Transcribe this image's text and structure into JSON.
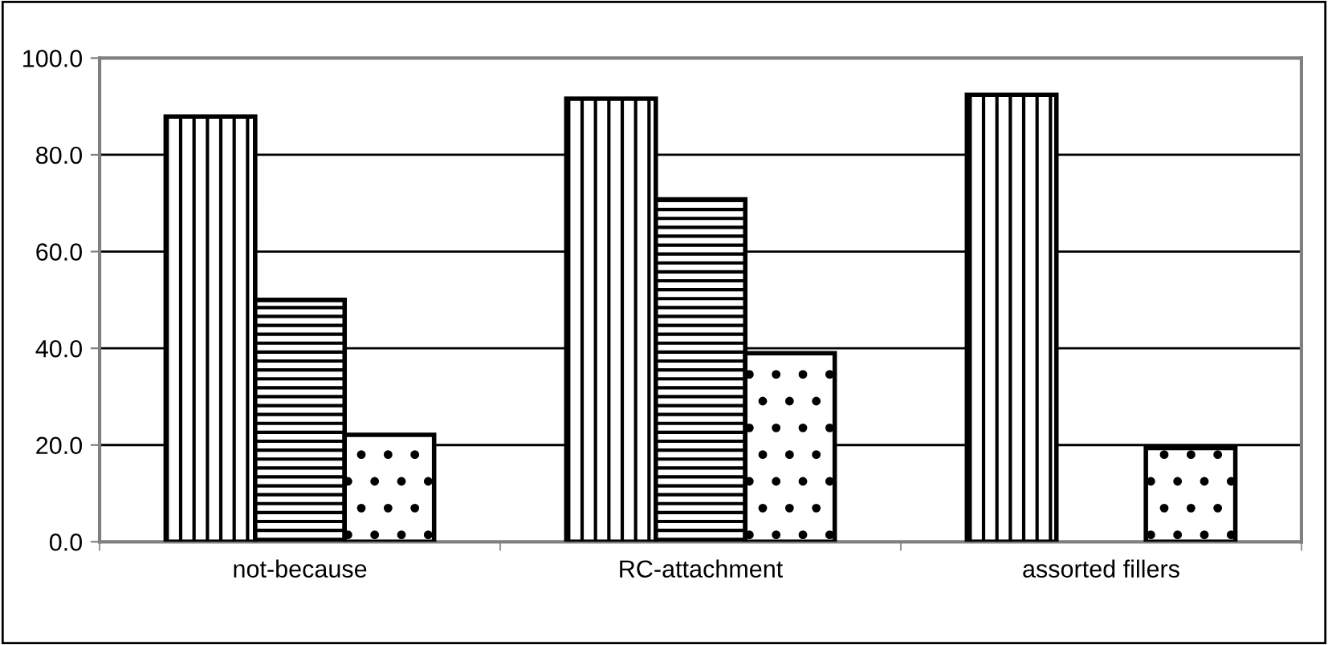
{
  "chart_data": {
    "type": "bar",
    "categories": [
      "not-because",
      "RC-attachment",
      "assorted fillers"
    ],
    "series": [
      {
        "color": "#000000",
        "values": [
          87.9,
          91.6,
          92.4
        ]
      },
      {
        "color": "#000000",
        "values": [
          50.0,
          70.8,
          null
        ]
      },
      {
        "color": "#000000",
        "values": [
          22.1,
          39.0,
          19.4
        ]
      }
    ],
    "ylim": [
      0,
      100
    ],
    "yticks": [
      {
        "value": 0,
        "label": "0.0"
      },
      {
        "value": 20,
        "label": "20.0"
      },
      {
        "value": 40,
        "label": "40.0"
      },
      {
        "value": 60,
        "label": "60.0"
      },
      {
        "value": 80,
        "label": "80.0"
      },
      {
        "value": 100,
        "label": "100.0"
      }
    ],
    "grid": "y",
    "legend": false
  }
}
